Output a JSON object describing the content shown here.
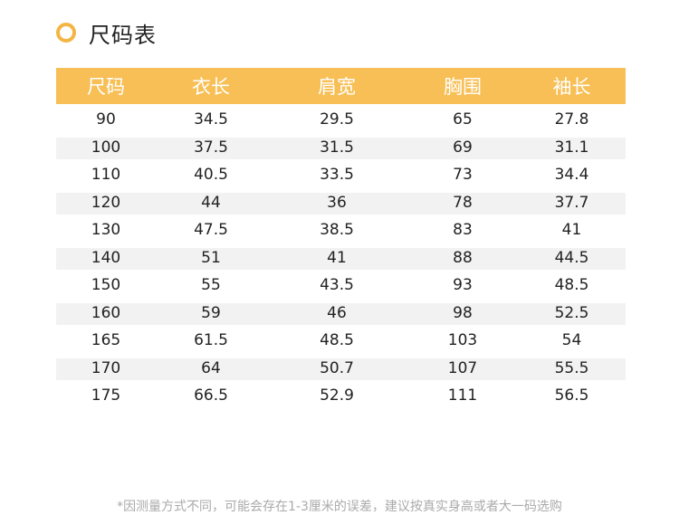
{
  "title": "尺码表",
  "table": {
    "headers": [
      "尺码",
      "衣长",
      "肩宽",
      "胸围",
      "袖长"
    ],
    "rows": [
      [
        "90",
        "34.5",
        "29.5",
        "65",
        "27.8"
      ],
      [
        "100",
        "37.5",
        "31.5",
        "69",
        "31.1"
      ],
      [
        "110",
        "40.5",
        "33.5",
        "73",
        "34.4"
      ],
      [
        "120",
        "44",
        "36",
        "78",
        "37.7"
      ],
      [
        "130",
        "47.5",
        "38.5",
        "83",
        "41"
      ],
      [
        "140",
        "51",
        "41",
        "88",
        "44.5"
      ],
      [
        "150",
        "55",
        "43.5",
        "93",
        "48.5"
      ],
      [
        "160",
        "59",
        "46",
        "98",
        "52.5"
      ],
      [
        "165",
        "61.5",
        "48.5",
        "103",
        "54"
      ],
      [
        "170",
        "64",
        "50.7",
        "107",
        "55.5"
      ],
      [
        "175",
        "66.5",
        "52.9",
        "111",
        "56.5"
      ]
    ]
  },
  "note": "*因测量方式不同，可能会存在1-3厘米的误差，建议按真实身高或者大一码选购",
  "colors": {
    "accent": "#f7bf55",
    "ring": "#f3b544",
    "stripe": "#f2f2f2"
  },
  "icons": {
    "title_marker": "ring-icon"
  }
}
